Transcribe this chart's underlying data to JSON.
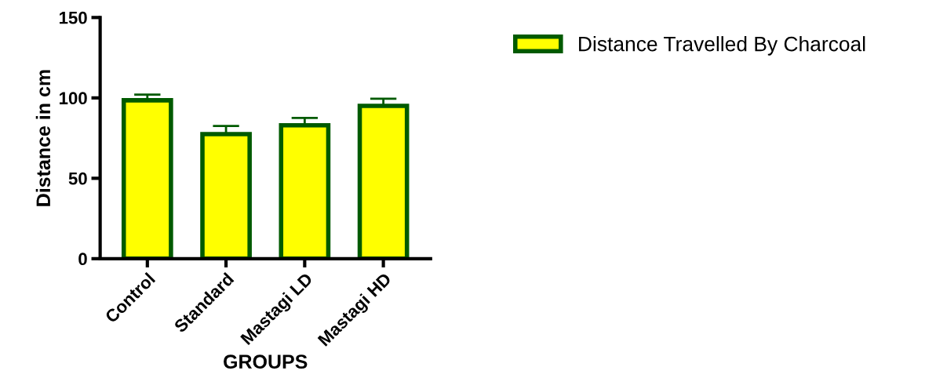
{
  "chart_data": {
    "type": "bar",
    "xlabel": "GROUPS",
    "ylabel": "Distance in cm",
    "categories": [
      "Control",
      "Standard",
      "Mastagi LD",
      "Mastagi HD"
    ],
    "series": [
      {
        "name": "Distance Travelled By Charcoal",
        "color": "#ffff00",
        "values": [
          98.5,
          77.5,
          83,
          95
        ],
        "errors": [
          [
            98.5,
            102
          ],
          [
            77.5,
            82.5
          ],
          [
            83,
            87.5
          ],
          [
            95,
            99.5
          ]
        ]
      }
    ],
    "ylim": [
      0,
      150
    ],
    "yticks": [
      0,
      50,
      100,
      150
    ],
    "grid": false,
    "legend": "top right"
  }
}
